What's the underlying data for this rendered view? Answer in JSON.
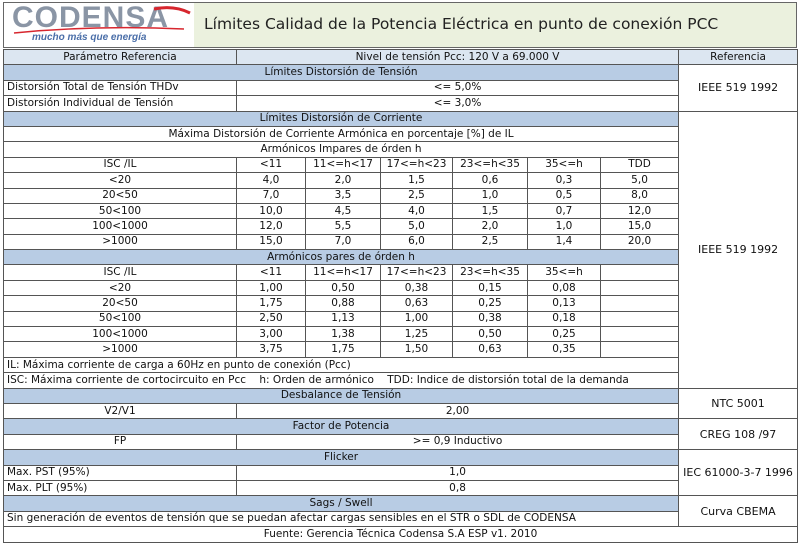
{
  "header": {
    "logo_name": "CODENSA",
    "logo_tagline": "mucho más que energía",
    "title": "Límites Calidad de la Potencia Eléctrica en punto de conexión PCC"
  },
  "table": {
    "columns": [
      "Parámetro Referencia",
      "Nivel de tensión Pcc: 120 V a 69.000 V",
      "Referencia"
    ],
    "voltage": {
      "title": "Límites Distorsión de Tensión",
      "rows": [
        [
          "Distorsión Total de Tensión THDv",
          "<= 5,0%"
        ],
        [
          "Distorsión Individual de Tensión",
          "<= 3,0%"
        ]
      ],
      "reference": "IEEE 519 1992"
    },
    "current": {
      "title": "Límites Distorsión de Corriente",
      "subtitle": "Máxima Distorsión de Corriente Armónica en porcentaje [%] de IL",
      "reference": "IEEE 519 1992",
      "odd": {
        "title": "Armónicos Impares de órden h",
        "headers": [
          "ISC /IL",
          "<11",
          "11<=h<17",
          "17<=h<23",
          "23<=h<35",
          "35<=h",
          "TDD"
        ],
        "rows": [
          [
            "<20",
            "4,0",
            "2,0",
            "1,5",
            "0,6",
            "0,3",
            "5,0"
          ],
          [
            "20<50",
            "7,0",
            "3,5",
            "2,5",
            "1,0",
            "0,5",
            "8,0"
          ],
          [
            "50<100",
            "10,0",
            "4,5",
            "4,0",
            "1,5",
            "0,7",
            "12,0"
          ],
          [
            "100<1000",
            "12,0",
            "5,5",
            "5,0",
            "2,0",
            "1,0",
            "15,0"
          ],
          [
            ">1000",
            "15,0",
            "7,0",
            "6,0",
            "2,5",
            "1,4",
            "20,0"
          ]
        ]
      },
      "even": {
        "title": "Armónicos pares de órden h",
        "headers": [
          "ISC /IL",
          "<11",
          "11<=h<17",
          "17<=h<23",
          "23<=h<35",
          "35<=h"
        ],
        "rows": [
          [
            "<20",
            "1,00",
            "0,50",
            "0,38",
            "0,15",
            "0,08"
          ],
          [
            "20<50",
            "1,75",
            "0,88",
            "0,63",
            "0,25",
            "0,13"
          ],
          [
            "50<100",
            "2,50",
            "1,13",
            "1,00",
            "0,38",
            "0,18"
          ],
          [
            "100<1000",
            "3,00",
            "1,38",
            "1,25",
            "0,50",
            "0,25"
          ],
          [
            ">1000",
            "3,75",
            "1,75",
            "1,50",
            "0,63",
            "0,35"
          ]
        ]
      },
      "notes": [
        "IL: Máxima corriente de carga a 60Hz en punto de conexión (Pcc)",
        [
          "ISC: Máxima corriente de cortocircuito en Pcc",
          "h: Orden de armónico",
          "TDD: Indice de distorsión total de la demanda"
        ]
      ]
    },
    "unbalance": {
      "title": "Desbalance de Tensión",
      "label": "V2/V1",
      "value": "2,00",
      "reference": "NTC 5001"
    },
    "power_factor": {
      "title": "Factor de Potencia",
      "label": "FP",
      "value": ">= 0,9 Inductivo",
      "reference": "CREG 108 /97"
    },
    "flicker": {
      "title": "Flicker",
      "rows": [
        [
          "Max. PST (95%)",
          "1,0"
        ],
        [
          "Max. PLT (95%)",
          "0,8"
        ]
      ],
      "reference": "IEC 61000-3-7 1996"
    },
    "sags": {
      "title": "Sags / Swell",
      "text": "Sin generación de eventos de tensión que se puedan afectar cargas sensibles en el STR o SDL de CODENSA",
      "reference": "Curva CBEMA"
    },
    "source": "Fuente: Gerencia Técnica Codensa S.A ESP v1. 2010"
  }
}
